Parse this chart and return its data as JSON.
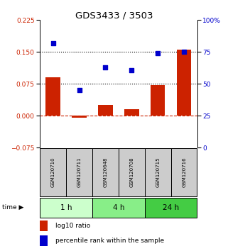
{
  "title": "GDS3433 / 3503",
  "samples": [
    "GSM120710",
    "GSM120711",
    "GSM120648",
    "GSM120708",
    "GSM120715",
    "GSM120716"
  ],
  "log10_ratio": [
    0.09,
    -0.005,
    0.025,
    0.015,
    0.072,
    0.155
  ],
  "percentile_rank": [
    82,
    45,
    63,
    61,
    74,
    75
  ],
  "time_groups": [
    {
      "label": "1 h",
      "span": [
        0,
        2
      ],
      "color": "#ccffcc"
    },
    {
      "label": "4 h",
      "span": [
        2,
        4
      ],
      "color": "#88ee88"
    },
    {
      "label": "24 h",
      "span": [
        4,
        6
      ],
      "color": "#44cc44"
    }
  ],
  "ylim_left": [
    -0.075,
    0.225
  ],
  "yticks_left": [
    -0.075,
    0,
    0.075,
    0.15,
    0.225
  ],
  "ylim_right": [
    0,
    100
  ],
  "yticks_right": [
    0,
    25,
    50,
    75,
    100
  ],
  "yticklabels_right": [
    "0",
    "25",
    "50",
    "75",
    "100%"
  ],
  "bar_color": "#cc2200",
  "dot_color": "#0000cc",
  "hline_y": [
    0.075,
    0.15
  ],
  "hline_color": "black",
  "zero_line_color": "#cc2200",
  "sample_box_color": "#cccccc",
  "legend_bar_label": "log10 ratio",
  "legend_dot_label": "percentile rank within the sample",
  "title_fontsize": 9.5,
  "tick_fontsize": 6.5,
  "sample_fontsize": 5.0,
  "time_fontsize": 7.5,
  "legend_fontsize": 6.5
}
